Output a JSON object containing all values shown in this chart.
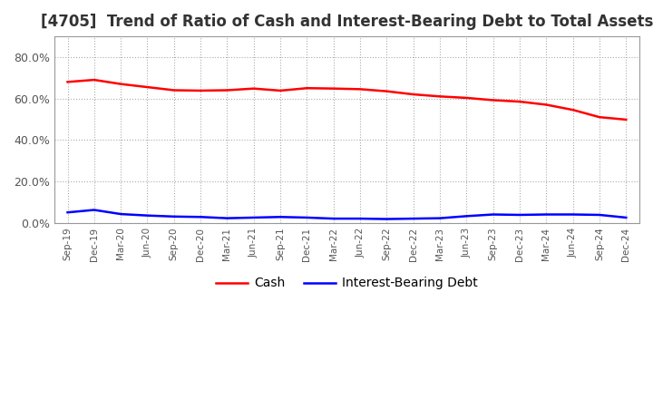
{
  "title": "[4705]  Trend of Ratio of Cash and Interest-Bearing Debt to Total Assets",
  "x_labels": [
    "Sep-19",
    "Dec-19",
    "Mar-20",
    "Jun-20",
    "Sep-20",
    "Dec-20",
    "Mar-21",
    "Jun-21",
    "Sep-21",
    "Dec-21",
    "Mar-22",
    "Jun-22",
    "Sep-22",
    "Dec-22",
    "Mar-23",
    "Jun-23",
    "Sep-23",
    "Dec-23",
    "Mar-24",
    "Jun-24",
    "Sep-24",
    "Dec-24"
  ],
  "cash": [
    0.68,
    0.69,
    0.67,
    0.655,
    0.64,
    0.638,
    0.64,
    0.648,
    0.638,
    0.65,
    0.648,
    0.645,
    0.635,
    0.62,
    0.61,
    0.603,
    0.592,
    0.585,
    0.57,
    0.545,
    0.51,
    0.498
  ],
  "interest_bearing_debt": [
    0.05,
    0.062,
    0.042,
    0.035,
    0.03,
    0.028,
    0.022,
    0.025,
    0.028,
    0.025,
    0.02,
    0.02,
    0.018,
    0.02,
    0.022,
    0.032,
    0.04,
    0.038,
    0.04,
    0.04,
    0.038,
    0.025
  ],
  "cash_color": "#ff0000",
  "debt_color": "#0000ff",
  "ylim": [
    0.0,
    0.9
  ],
  "yticks": [
    0.0,
    0.2,
    0.4,
    0.6,
    0.8
  ],
  "background_color": "#ffffff",
  "grid_color": "#aaaaaa",
  "title_fontsize": 12,
  "legend_labels": [
    "Cash",
    "Interest-Bearing Debt"
  ]
}
